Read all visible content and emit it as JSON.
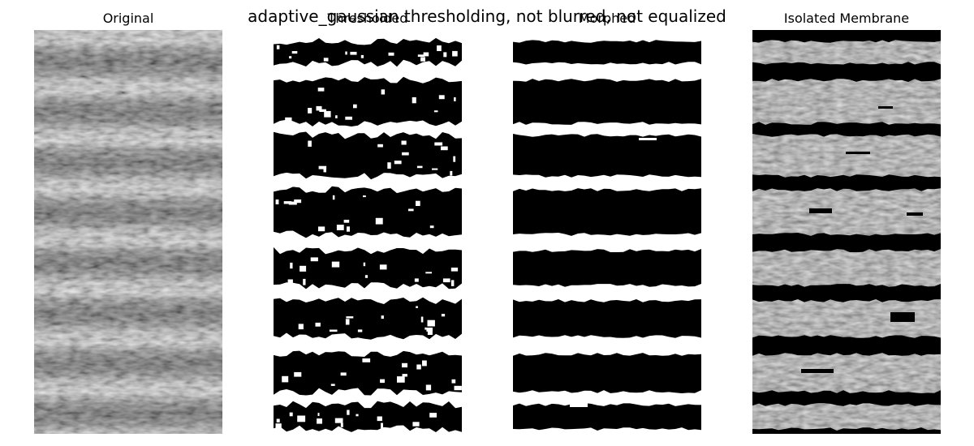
{
  "figure": {
    "suptitle": "adaptive_gaussian thresholding, not blurred, not equalized"
  },
  "panels": [
    {
      "title": "Original",
      "kind": "grayscale-image"
    },
    {
      "title": "Thresholded",
      "kind": "binary-mask"
    },
    {
      "title": "Morphed",
      "kind": "binary-mask"
    },
    {
      "title": "Isolated Membrane",
      "kind": "masked-grayscale-image"
    }
  ],
  "colors": {
    "background": "#ffffff",
    "mask_on": "#000000",
    "mask_off": "#ffffff",
    "isolated_background": "#000000"
  }
}
